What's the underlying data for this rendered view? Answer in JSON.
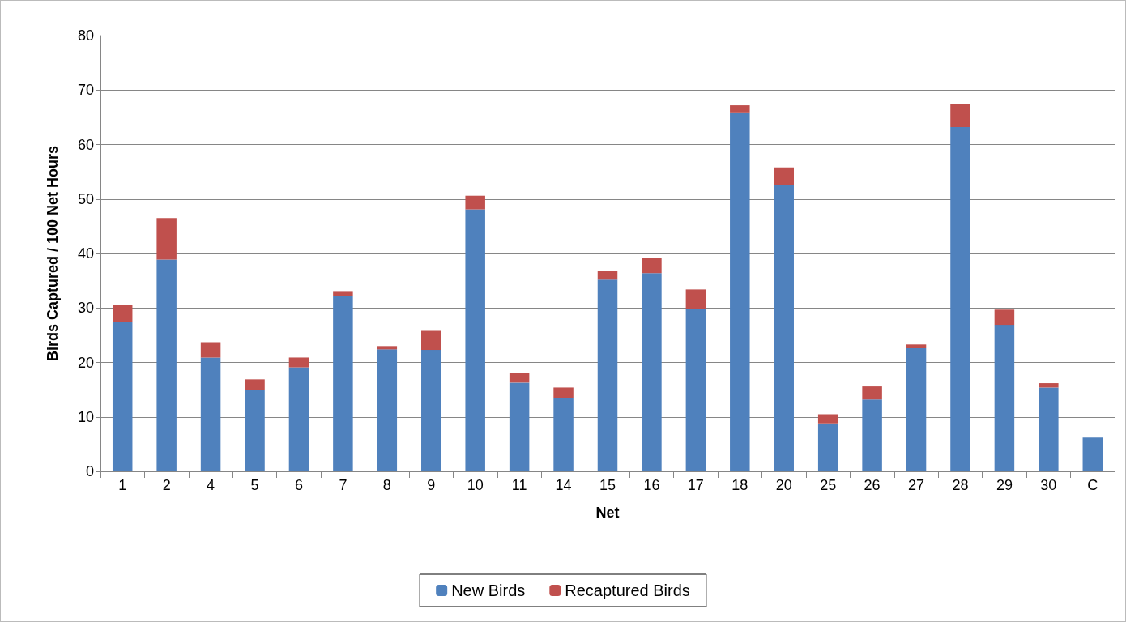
{
  "chart_data": {
    "type": "bar",
    "stacked": true,
    "xlabel": "Net",
    "ylabel": "Birds Captured / 100 Net Hours",
    "categories": [
      "1",
      "2",
      "4",
      "5",
      "6",
      "7",
      "8",
      "9",
      "10",
      "11",
      "14",
      "15",
      "16",
      "17",
      "18",
      "20",
      "25",
      "26",
      "27",
      "28",
      "29",
      "30",
      "C"
    ],
    "series": [
      {
        "name": "New Birds",
        "color": "#4f81bd",
        "values": [
          27.4,
          38.9,
          20.9,
          15.0,
          19.1,
          32.2,
          22.4,
          22.3,
          48.1,
          16.3,
          13.5,
          35.2,
          36.4,
          29.8,
          65.9,
          52.5,
          8.8,
          13.2,
          22.6,
          63.2,
          26.9,
          15.4,
          6.2
        ]
      },
      {
        "name": "Recaptured Birds",
        "color": "#c0504d",
        "values": [
          3.2,
          7.6,
          2.8,
          1.9,
          1.8,
          0.9,
          0.6,
          3.5,
          2.5,
          1.8,
          1.9,
          1.6,
          2.8,
          3.6,
          1.3,
          3.3,
          1.7,
          2.4,
          0.7,
          4.2,
          2.8,
          0.8,
          null
        ]
      }
    ],
    "ylim": [
      0,
      80
    ],
    "yticks": [
      0,
      10,
      20,
      30,
      40,
      50,
      60,
      70,
      80
    ],
    "grid": "y",
    "legend": "bottom"
  }
}
